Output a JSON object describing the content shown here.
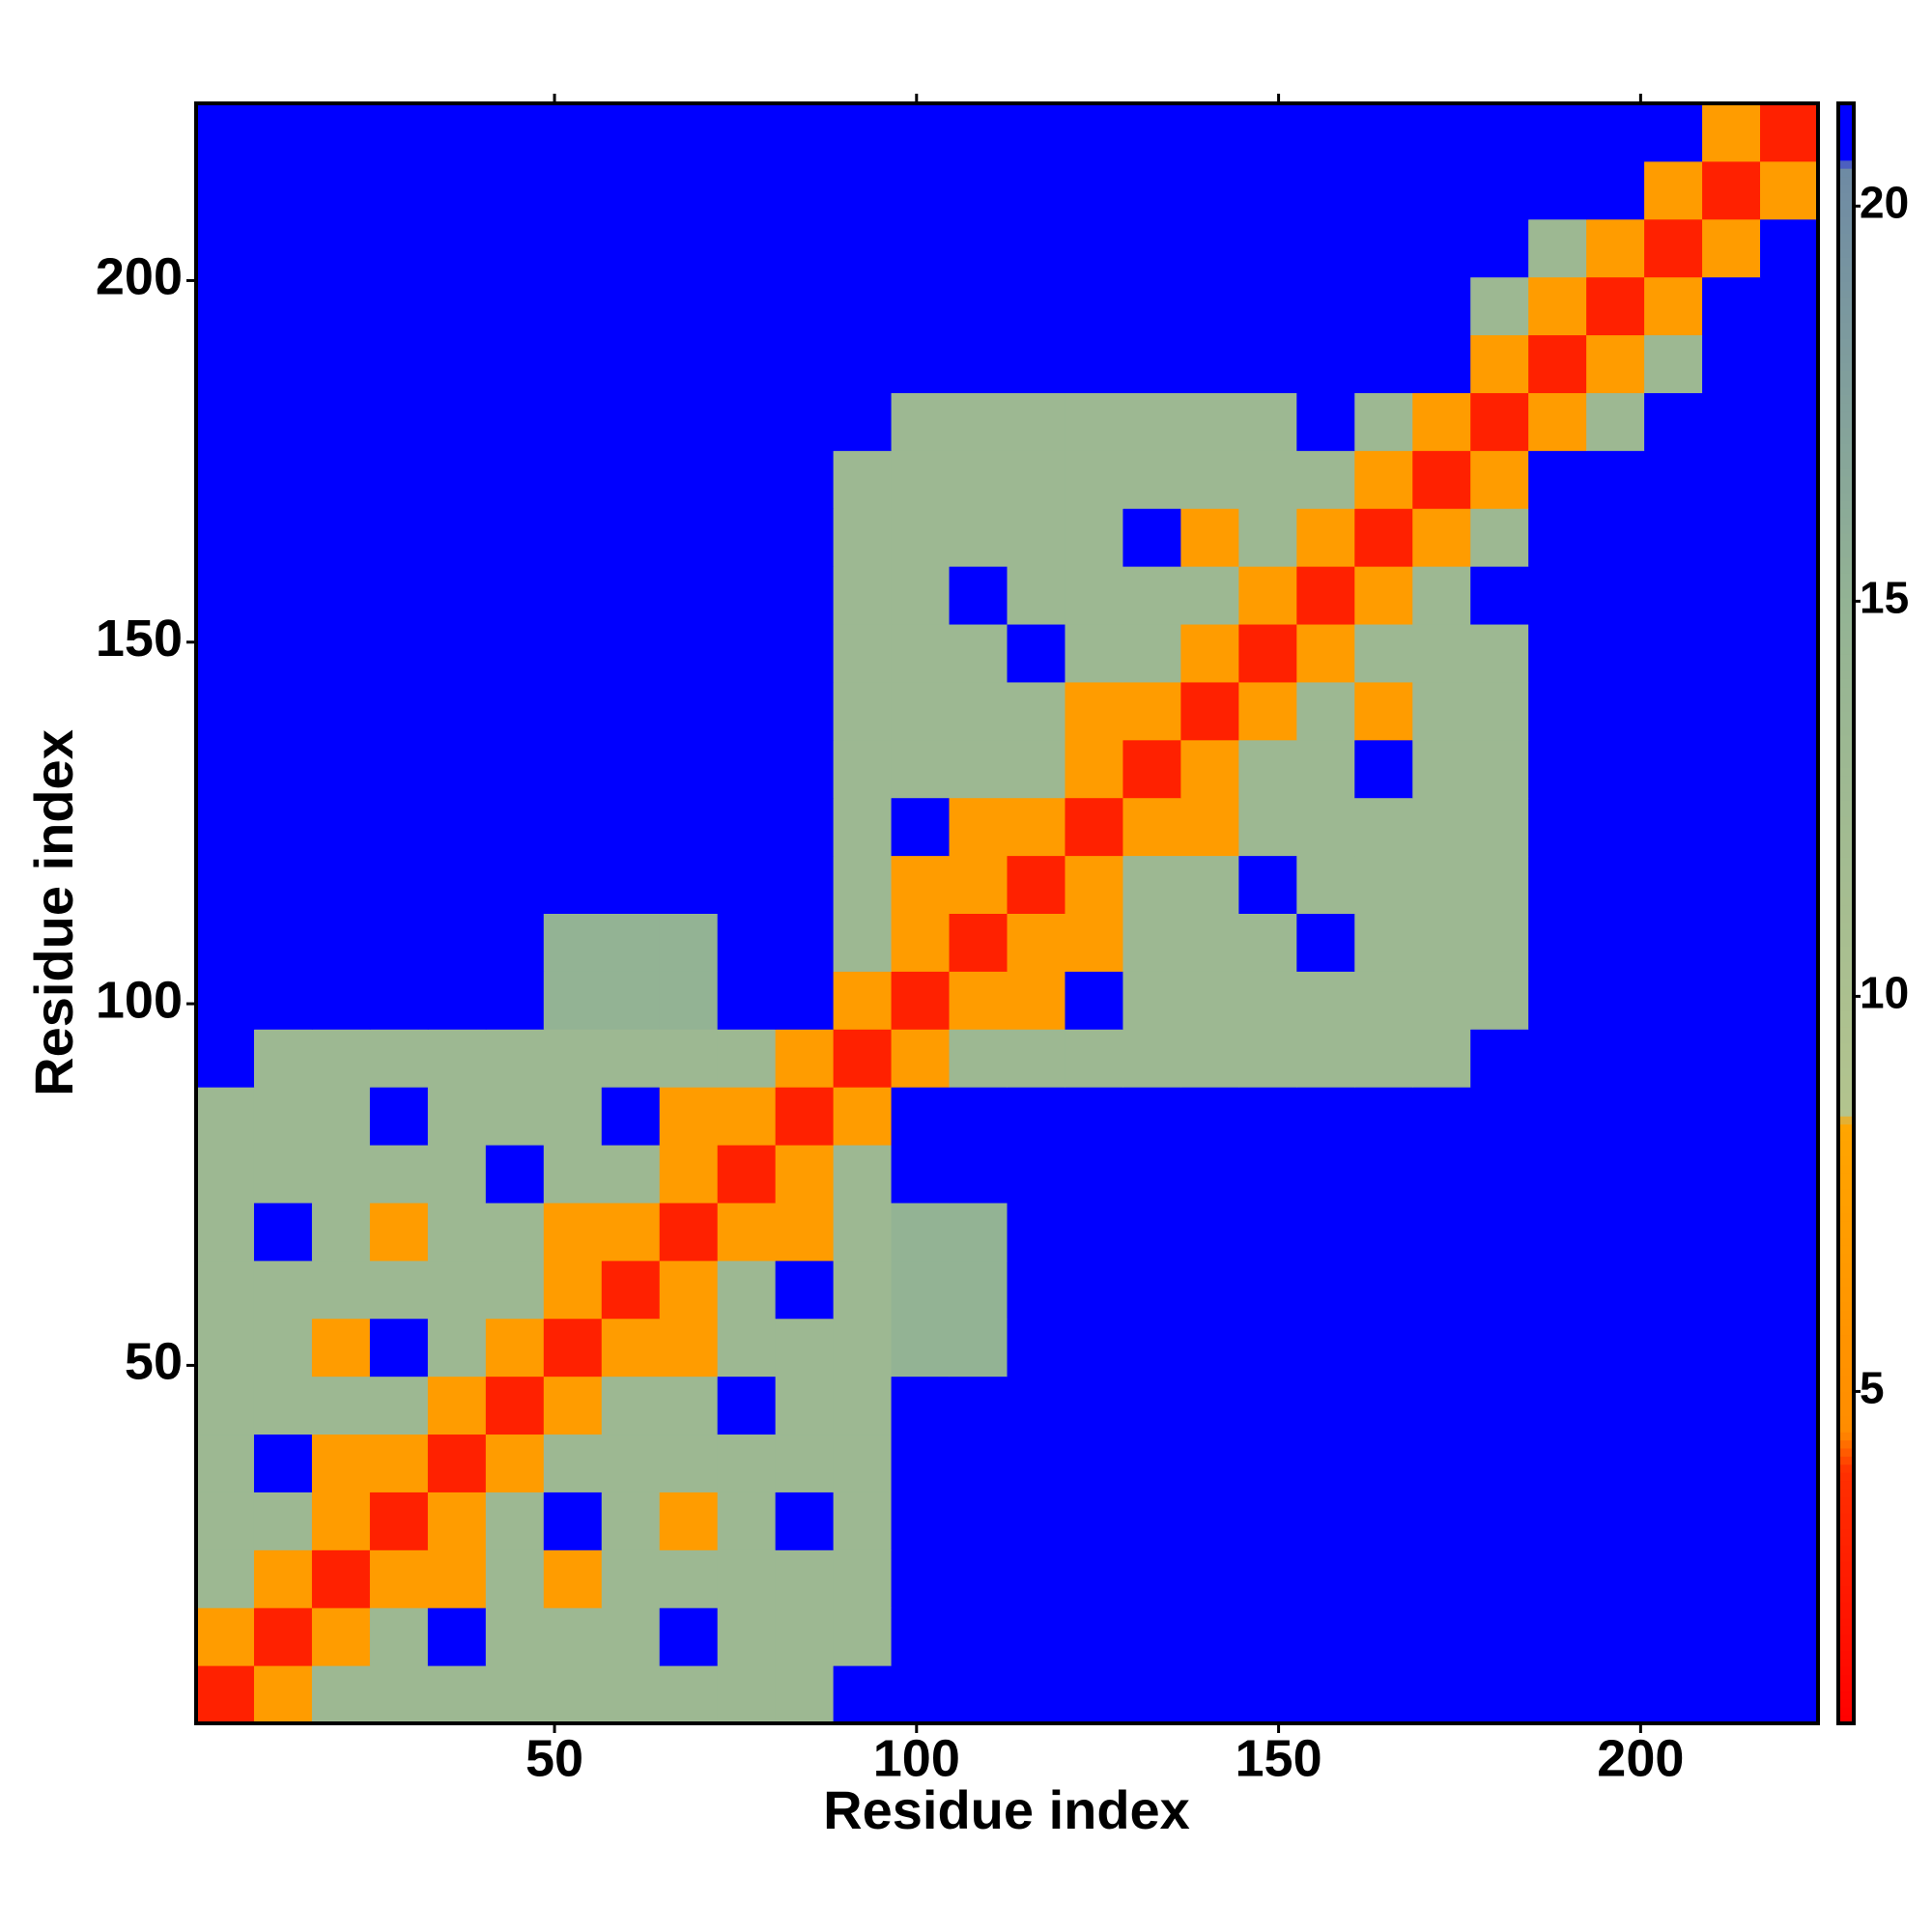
{
  "chart_data": {
    "type": "heatmap",
    "x_label": "Residue index",
    "y_label": "Residue index",
    "xlim": [
      0.5,
      224.5
    ],
    "ylim": [
      0.5,
      224.5
    ],
    "xticks": [
      50,
      100,
      150,
      200
    ],
    "yticks": [
      50,
      100,
      150,
      200
    ],
    "zlim": [
      0.8,
      21.3
    ],
    "zticks": [
      5,
      10,
      15,
      20
    ],
    "colorscale": [
      [
        0.8,
        "#ff0000"
      ],
      [
        4,
        "#ff3000"
      ],
      [
        4.5,
        "#ff8c00"
      ],
      [
        8.4,
        "#ffa500"
      ],
      [
        8.5,
        "#b3c48e"
      ],
      [
        15,
        "#93b394"
      ],
      [
        20.5,
        "#6e8aa4"
      ],
      [
        20.6,
        "#0000ff"
      ]
    ],
    "x": [
      4.5,
      12.5,
      20.5,
      28.5,
      36.5,
      44.5,
      52.5,
      60.5,
      68.5,
      76.5,
      84.5,
      92.5,
      100.5,
      108.5,
      116.5,
      124.5,
      132.5,
      140.5,
      148.5,
      156.5,
      164.5,
      172.5,
      180.5,
      188.5,
      196.5,
      204.5,
      212.5,
      220.5
    ],
    "y": [
      4.5,
      12.5,
      20.5,
      28.5,
      36.5,
      44.5,
      52.5,
      60.5,
      68.5,
      76.5,
      84.5,
      92.5,
      100.5,
      108.5,
      116.5,
      124.5,
      132.5,
      140.5,
      148.5,
      156.5,
      164.5,
      172.5,
      180.5,
      188.5,
      196.5,
      204.5,
      212.5,
      220.5
    ],
    "z": [
      [
        3,
        7,
        13,
        13,
        13,
        13,
        13,
        13,
        13,
        13,
        13,
        21,
        21,
        21,
        21,
        21,
        21,
        21,
        21,
        21,
        21,
        21,
        21,
        21,
        21,
        21,
        21,
        21
      ],
      [
        7,
        3,
        7,
        13,
        21,
        13,
        13,
        13,
        21,
        13,
        13,
        13,
        21,
        21,
        21,
        21,
        21,
        21,
        21,
        21,
        21,
        21,
        21,
        21,
        21,
        21,
        21,
        21
      ],
      [
        13,
        7,
        3,
        7,
        7,
        13,
        7,
        13,
        13,
        13,
        13,
        13,
        21,
        21,
        21,
        21,
        21,
        21,
        21,
        21,
        21,
        21,
        21,
        21,
        21,
        21,
        21,
        21
      ],
      [
        13,
        13,
        7,
        3,
        7,
        13,
        21,
        13,
        7,
        13,
        21,
        13,
        21,
        21,
        21,
        21,
        21,
        21,
        21,
        21,
        21,
        21,
        21,
        21,
        21,
        21,
        21,
        21
      ],
      [
        13,
        21,
        7,
        7,
        3,
        7,
        13,
        13,
        13,
        13,
        13,
        13,
        21,
        21,
        21,
        21,
        21,
        21,
        21,
        21,
        21,
        21,
        21,
        21,
        21,
        21,
        21,
        21
      ],
      [
        13,
        13,
        13,
        13,
        7,
        3,
        7,
        13,
        13,
        21,
        13,
        13,
        21,
        21,
        21,
        21,
        21,
        21,
        21,
        21,
        21,
        21,
        21,
        21,
        21,
        21,
        21,
        21
      ],
      [
        13,
        13,
        7,
        21,
        13,
        7,
        3,
        7,
        7,
        13,
        13,
        13,
        15,
        15,
        21,
        21,
        21,
        21,
        21,
        21,
        21,
        21,
        21,
        21,
        21,
        21,
        21,
        21
      ],
      [
        13,
        13,
        13,
        13,
        13,
        13,
        7,
        3,
        7,
        13,
        21,
        13,
        15,
        15,
        21,
        21,
        21,
        21,
        21,
        21,
        21,
        21,
        21,
        21,
        21,
        21,
        21,
        21
      ],
      [
        13,
        21,
        13,
        7,
        13,
        13,
        7,
        7,
        3,
        7,
        7,
        13,
        15,
        15,
        21,
        21,
        21,
        21,
        21,
        21,
        21,
        21,
        21,
        21,
        21,
        21,
        21,
        21
      ],
      [
        13,
        13,
        13,
        13,
        13,
        21,
        13,
        13,
        7,
        3,
        7,
        13,
        21,
        21,
        21,
        21,
        21,
        21,
        21,
        21,
        21,
        21,
        21,
        21,
        21,
        21,
        21,
        21
      ],
      [
        13,
        13,
        13,
        21,
        13,
        13,
        13,
        21,
        7,
        7,
        3,
        7,
        21,
        21,
        21,
        21,
        21,
        21,
        21,
        21,
        21,
        21,
        21,
        21,
        21,
        21,
        21,
        21
      ],
      [
        21,
        13,
        13,
        13,
        13,
        13,
        13,
        13,
        13,
        13,
        7,
        3,
        7,
        13,
        13,
        13,
        13,
        13,
        13,
        13,
        13,
        13,
        21,
        21,
        21,
        21,
        21,
        21
      ],
      [
        21,
        21,
        21,
        21,
        21,
        21,
        15,
        15,
        15,
        21,
        21,
        7,
        3,
        7,
        7,
        21,
        13,
        13,
        13,
        13,
        13,
        13,
        13,
        21,
        21,
        21,
        21,
        21
      ],
      [
        21,
        21,
        21,
        21,
        21,
        21,
        15,
        15,
        15,
        21,
        21,
        13,
        7,
        3,
        7,
        7,
        13,
        13,
        13,
        21,
        13,
        13,
        13,
        21,
        21,
        21,
        21,
        21
      ],
      [
        21,
        21,
        21,
        21,
        21,
        21,
        21,
        21,
        21,
        21,
        21,
        13,
        7,
        7,
        3,
        7,
        13,
        13,
        21,
        13,
        13,
        13,
        13,
        21,
        21,
        21,
        21,
        21
      ],
      [
        21,
        21,
        21,
        21,
        21,
        21,
        21,
        21,
        21,
        21,
        21,
        13,
        21,
        7,
        7,
        3,
        7,
        7,
        13,
        13,
        13,
        13,
        13,
        21,
        21,
        21,
        21,
        21
      ],
      [
        21,
        21,
        21,
        21,
        21,
        21,
        21,
        21,
        21,
        21,
        21,
        13,
        13,
        13,
        13,
        7,
        3,
        7,
        13,
        13,
        21,
        13,
        13,
        21,
        21,
        21,
        21,
        21
      ],
      [
        21,
        21,
        21,
        21,
        21,
        21,
        21,
        21,
        21,
        21,
        21,
        13,
        13,
        13,
        13,
        7,
        7,
        3,
        7,
        13,
        7,
        13,
        13,
        21,
        21,
        21,
        21,
        21
      ],
      [
        21,
        21,
        21,
        21,
        21,
        21,
        21,
        21,
        21,
        21,
        21,
        13,
        13,
        13,
        21,
        13,
        13,
        7,
        3,
        7,
        13,
        13,
        13,
        21,
        21,
        21,
        21,
        21
      ],
      [
        21,
        21,
        21,
        21,
        21,
        21,
        21,
        21,
        21,
        21,
        21,
        13,
        13,
        21,
        13,
        13,
        13,
        13,
        7,
        3,
        7,
        13,
        21,
        21,
        21,
        21,
        21,
        21
      ],
      [
        21,
        21,
        21,
        21,
        21,
        21,
        21,
        21,
        21,
        21,
        21,
        13,
        13,
        13,
        13,
        13,
        21,
        7,
        13,
        7,
        3,
        7,
        13,
        21,
        21,
        21,
        21,
        21
      ],
      [
        21,
        21,
        21,
        21,
        21,
        21,
        21,
        21,
        21,
        21,
        21,
        13,
        13,
        13,
        13,
        13,
        13,
        13,
        13,
        13,
        7,
        3,
        7,
        21,
        21,
        21,
        21,
        21
      ],
      [
        21,
        21,
        21,
        21,
        21,
        21,
        21,
        21,
        21,
        21,
        21,
        21,
        13,
        13,
        13,
        13,
        13,
        13,
        13,
        21,
        13,
        7,
        3,
        7,
        13,
        21,
        21,
        21
      ],
      [
        21,
        21,
        21,
        21,
        21,
        21,
        21,
        21,
        21,
        21,
        21,
        21,
        21,
        21,
        21,
        21,
        21,
        21,
        21,
        21,
        21,
        21,
        7,
        3,
        7,
        13,
        21,
        21
      ],
      [
        21,
        21,
        21,
        21,
        21,
        21,
        21,
        21,
        21,
        21,
        21,
        21,
        21,
        21,
        21,
        21,
        21,
        21,
        21,
        21,
        21,
        21,
        13,
        7,
        3,
        7,
        21,
        21
      ],
      [
        21,
        21,
        21,
        21,
        21,
        21,
        21,
        21,
        21,
        21,
        21,
        21,
        21,
        21,
        21,
        21,
        21,
        21,
        21,
        21,
        21,
        21,
        21,
        13,
        7,
        3,
        7,
        21
      ],
      [
        21,
        21,
        21,
        21,
        21,
        21,
        21,
        21,
        21,
        21,
        21,
        21,
        21,
        21,
        21,
        21,
        21,
        21,
        21,
        21,
        21,
        21,
        21,
        21,
        21,
        7,
        3,
        7
      ],
      [
        21,
        21,
        21,
        21,
        21,
        21,
        21,
        21,
        21,
        21,
        21,
        21,
        21,
        21,
        21,
        21,
        21,
        21,
        21,
        21,
        21,
        21,
        21,
        21,
        21,
        21,
        7,
        3
      ]
    ]
  }
}
